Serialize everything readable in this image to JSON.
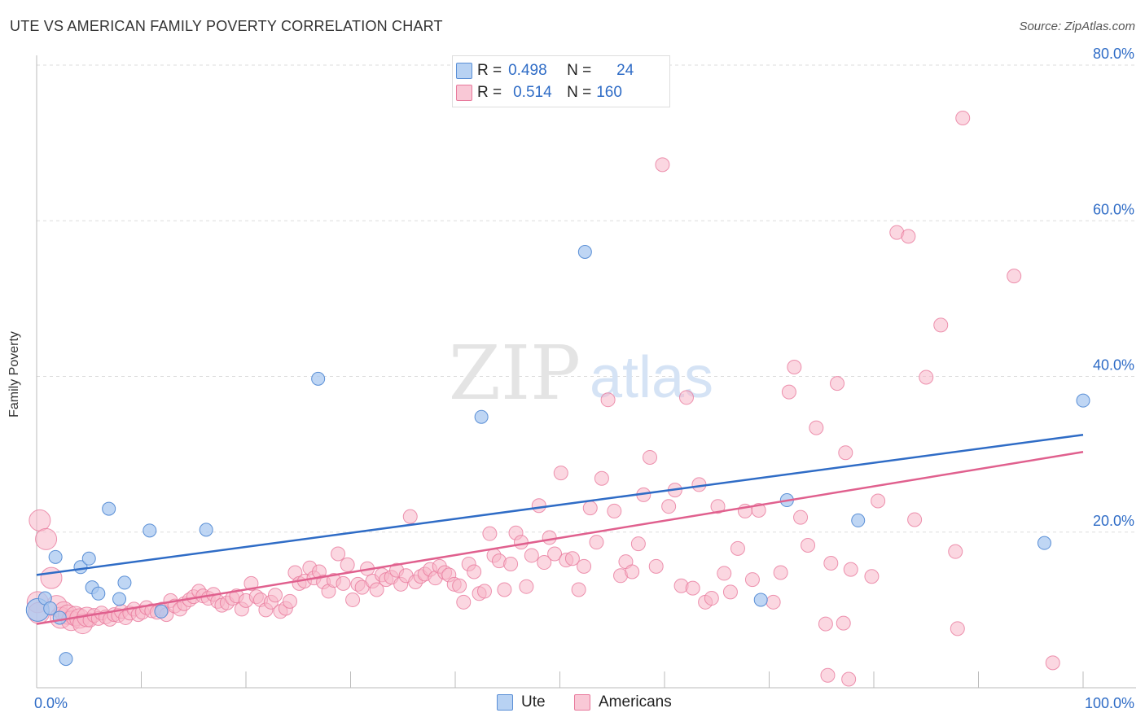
{
  "title": "UTE VS AMERICAN FAMILY POVERTY CORRELATION CHART",
  "source": "Source: ZipAtlas.com",
  "watermark": {
    "zip": "ZIP",
    "atlas": "atlas"
  },
  "stats": {
    "ute": {
      "r_label": "R =",
      "r_value": "0.498",
      "n_label": "N =",
      "n_value": "24"
    },
    "americans": {
      "r_label": "R =",
      "r_value": "0.514",
      "n_label": "N =",
      "n_value": "160"
    }
  },
  "legend": {
    "ute": "Ute",
    "americans": "Americans"
  },
  "colors": {
    "ute_fill": "#a9c8f0",
    "ute_stroke": "#5a8fd6",
    "ute_line": "#2f6cc6",
    "americans_fill": "#f7b6c9",
    "americans_stroke": "#e8799c",
    "americans_line": "#e0608e",
    "tick_text": "#2f6cc6",
    "grid": "#dddddd"
  },
  "chart_data": {
    "type": "scatter",
    "xlabel": "",
    "ylabel": "Family Poverty",
    "xlim": [
      0,
      100
    ],
    "ylim": [
      0,
      80
    ],
    "x_tick_labels": [
      {
        "value": 0,
        "label": "0.0%"
      },
      {
        "value": 100,
        "label": "100.0%"
      }
    ],
    "y_tick_labels": [
      {
        "value": 20,
        "label": "20.0%"
      },
      {
        "value": 40,
        "label": "40.0%"
      },
      {
        "value": 60,
        "label": "60.0%"
      },
      {
        "value": 80,
        "label": "80.0%"
      }
    ],
    "grid": true,
    "series": [
      {
        "name": "Ute",
        "trend": {
          "x": [
            0,
            100
          ],
          "y": [
            14.5,
            32.5
          ]
        },
        "points": [
          [
            0.1,
            10.0
          ],
          [
            0.8,
            11.5
          ],
          [
            1.3,
            10.2
          ],
          [
            1.8,
            16.8
          ],
          [
            2.2,
            9.0
          ],
          [
            2.8,
            3.7
          ],
          [
            4.2,
            15.5
          ],
          [
            5.0,
            16.6
          ],
          [
            5.3,
            12.9
          ],
          [
            5.9,
            12.1
          ],
          [
            6.9,
            23.0
          ],
          [
            7.9,
            11.4
          ],
          [
            8.4,
            13.5
          ],
          [
            10.8,
            20.2
          ],
          [
            11.9,
            9.8
          ],
          [
            16.2,
            20.3
          ],
          [
            26.9,
            39.7
          ],
          [
            42.5,
            34.8
          ],
          [
            52.4,
            56.0
          ],
          [
            69.2,
            11.3
          ],
          [
            71.7,
            24.1
          ],
          [
            78.5,
            21.5
          ],
          [
            96.3,
            18.6
          ],
          [
            100.0,
            36.9
          ]
        ]
      },
      {
        "name": "Americans",
        "trend": {
          "x": [
            0,
            100
          ],
          "y": [
            8.2,
            30.3
          ]
        },
        "points": [
          [
            0.3,
            21.5
          ],
          [
            0.9,
            19.1
          ],
          [
            1.4,
            14.1
          ],
          [
            1.9,
            10.5
          ],
          [
            2.3,
            9.0
          ],
          [
            2.6,
            9.8
          ],
          [
            3.0,
            9.4
          ],
          [
            3.3,
            8.6
          ],
          [
            3.7,
            9.2
          ],
          [
            4.1,
            8.9
          ],
          [
            4.4,
            8.2
          ],
          [
            4.8,
            9.1
          ],
          [
            5.1,
            8.7
          ],
          [
            5.5,
            9.3
          ],
          [
            5.9,
            8.9
          ],
          [
            6.2,
            9.6
          ],
          [
            6.6,
            9.1
          ],
          [
            7.0,
            8.8
          ],
          [
            7.4,
            9.4
          ],
          [
            7.8,
            9.3
          ],
          [
            8.1,
            9.8
          ],
          [
            8.5,
            9.0
          ],
          [
            8.9,
            9.6
          ],
          [
            9.3,
            10.1
          ],
          [
            9.7,
            9.4
          ],
          [
            10.1,
            9.7
          ],
          [
            10.5,
            10.3
          ],
          [
            11.0,
            9.9
          ],
          [
            11.5,
            9.7
          ],
          [
            12.0,
            10.1
          ],
          [
            12.4,
            9.4
          ],
          [
            12.8,
            11.2
          ],
          [
            13.2,
            10.5
          ],
          [
            13.7,
            10.1
          ],
          [
            14.1,
            10.8
          ],
          [
            14.6,
            11.3
          ],
          [
            15.0,
            11.7
          ],
          [
            15.5,
            12.4
          ],
          [
            15.9,
            11.8
          ],
          [
            16.4,
            11.5
          ],
          [
            16.9,
            12.0
          ],
          [
            17.3,
            11.1
          ],
          [
            17.7,
            10.6
          ],
          [
            18.2,
            10.9
          ],
          [
            18.7,
            11.5
          ],
          [
            19.1,
            11.8
          ],
          [
            19.6,
            10.1
          ],
          [
            20.0,
            11.2
          ],
          [
            20.5,
            13.4
          ],
          [
            21.0,
            11.7
          ],
          [
            21.4,
            11.3
          ],
          [
            21.9,
            10.0
          ],
          [
            22.4,
            11.0
          ],
          [
            22.8,
            11.9
          ],
          [
            23.3,
            9.8
          ],
          [
            23.8,
            10.2
          ],
          [
            24.2,
            11.1
          ],
          [
            24.7,
            14.8
          ],
          [
            25.1,
            13.4
          ],
          [
            25.6,
            13.7
          ],
          [
            26.1,
            15.4
          ],
          [
            26.5,
            14.1
          ],
          [
            27.0,
            14.9
          ],
          [
            27.4,
            13.6
          ],
          [
            27.9,
            12.4
          ],
          [
            28.4,
            13.8
          ],
          [
            28.8,
            17.2
          ],
          [
            29.3,
            13.4
          ],
          [
            29.7,
            15.8
          ],
          [
            30.2,
            11.3
          ],
          [
            30.7,
            13.3
          ],
          [
            31.1,
            12.9
          ],
          [
            31.6,
            15.3
          ],
          [
            32.1,
            13.7
          ],
          [
            32.5,
            12.6
          ],
          [
            33.0,
            14.5
          ],
          [
            33.4,
            13.9
          ],
          [
            33.9,
            14.2
          ],
          [
            34.4,
            15.1
          ],
          [
            34.8,
            13.3
          ],
          [
            35.3,
            14.4
          ],
          [
            35.7,
            22.0
          ],
          [
            36.2,
            13.6
          ],
          [
            36.7,
            14.3
          ],
          [
            37.1,
            14.6
          ],
          [
            37.6,
            15.2
          ],
          [
            38.1,
            14.1
          ],
          [
            38.5,
            15.6
          ],
          [
            39.0,
            14.8
          ],
          [
            39.4,
            14.5
          ],
          [
            39.9,
            13.3
          ],
          [
            40.4,
            13.1
          ],
          [
            40.8,
            11.0
          ],
          [
            41.3,
            15.9
          ],
          [
            41.8,
            14.9
          ],
          [
            42.3,
            12.1
          ],
          [
            42.8,
            12.4
          ],
          [
            43.3,
            19.8
          ],
          [
            43.7,
            17.0
          ],
          [
            44.2,
            16.3
          ],
          [
            44.7,
            12.6
          ],
          [
            45.3,
            15.9
          ],
          [
            45.8,
            19.9
          ],
          [
            46.3,
            18.7
          ],
          [
            46.8,
            13.0
          ],
          [
            47.3,
            17.0
          ],
          [
            48.0,
            23.4
          ],
          [
            48.5,
            16.1
          ],
          [
            49.0,
            19.3
          ],
          [
            49.5,
            17.2
          ],
          [
            50.1,
            27.6
          ],
          [
            50.6,
            16.4
          ],
          [
            51.2,
            16.6
          ],
          [
            51.8,
            12.6
          ],
          [
            52.3,
            15.6
          ],
          [
            52.9,
            23.1
          ],
          [
            53.5,
            18.7
          ],
          [
            54.0,
            26.9
          ],
          [
            54.6,
            37.0
          ],
          [
            55.2,
            22.7
          ],
          [
            55.8,
            14.4
          ],
          [
            56.3,
            16.2
          ],
          [
            56.9,
            14.9
          ],
          [
            57.5,
            18.5
          ],
          [
            58.0,
            24.8
          ],
          [
            58.6,
            29.6
          ],
          [
            59.2,
            15.6
          ],
          [
            59.8,
            67.2
          ],
          [
            60.4,
            23.3
          ],
          [
            61.0,
            25.4
          ],
          [
            61.6,
            13.1
          ],
          [
            62.1,
            37.3
          ],
          [
            62.7,
            12.8
          ],
          [
            63.3,
            26.1
          ],
          [
            63.9,
            11.0
          ],
          [
            64.5,
            11.5
          ],
          [
            65.1,
            23.3
          ],
          [
            65.7,
            14.7
          ],
          [
            66.3,
            12.3
          ],
          [
            67.0,
            17.9
          ],
          [
            67.7,
            22.7
          ],
          [
            68.4,
            13.9
          ],
          [
            69.0,
            22.8
          ],
          [
            70.4,
            11.0
          ],
          [
            71.1,
            14.8
          ],
          [
            71.9,
            38.0
          ],
          [
            72.4,
            41.2
          ],
          [
            73.0,
            21.9
          ],
          [
            73.7,
            18.3
          ],
          [
            74.5,
            33.4
          ],
          [
            75.4,
            8.2
          ],
          [
            75.9,
            16.0
          ],
          [
            76.5,
            39.1
          ],
          [
            77.3,
            30.2
          ],
          [
            77.8,
            15.2
          ],
          [
            79.8,
            14.3
          ],
          [
            80.4,
            24.0
          ],
          [
            82.2,
            58.5
          ],
          [
            83.3,
            58.0
          ],
          [
            83.9,
            21.6
          ]
        ],
        "extra_points": [
          [
            85.0,
            39.9
          ],
          [
            86.4,
            46.6
          ],
          [
            87.8,
            17.5
          ],
          [
            88.0,
            7.6
          ],
          [
            88.5,
            73.2
          ],
          [
            93.4,
            52.9
          ],
          [
            97.1,
            3.2
          ],
          [
            75.6,
            1.6
          ],
          [
            77.6,
            1.1
          ],
          [
            77.1,
            8.3
          ],
          [
            0.1,
            11.0
          ],
          [
            0.2,
            9.6
          ]
        ]
      }
    ]
  }
}
